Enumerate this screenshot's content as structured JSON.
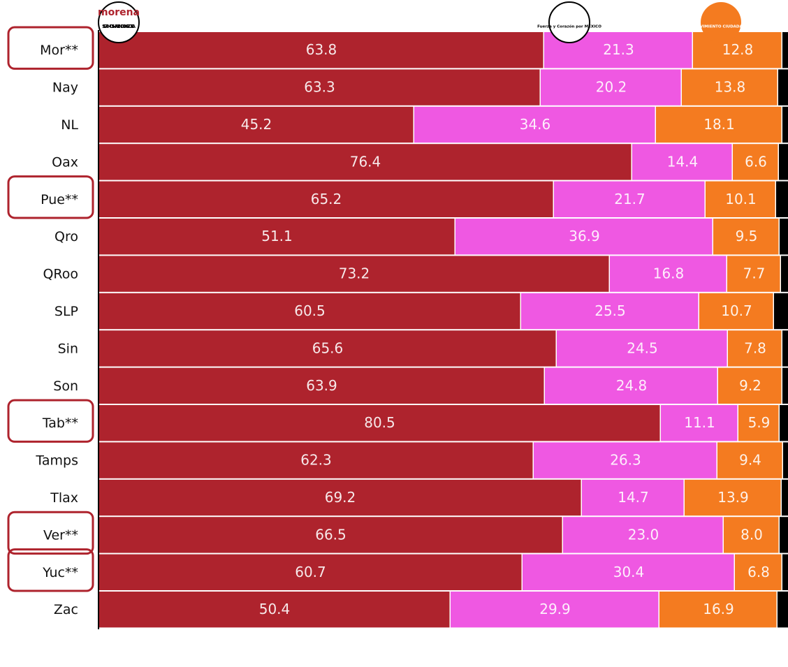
{
  "chart_data": {
    "type": "stacked-bar-horizontal",
    "categories": [
      "Mor**",
      "Nay",
      "NL",
      "Oax",
      "Pue**",
      "Qro",
      "QRoo",
      "SLP",
      "Sin",
      "Son",
      "Tab**",
      "Tamps",
      "Tlax",
      "Ver**",
      "Yuc**",
      "Zac"
    ],
    "xlim": [
      0,
      100
    ],
    "series": [
      {
        "name": "morena",
        "subtitle": "SIGAMOS HACIENDO HISTORIA",
        "color": "#ae232d",
        "values": [
          63.8,
          63.3,
          45.2,
          76.4,
          65.2,
          51.1,
          73.2,
          60.5,
          65.6,
          63.9,
          80.5,
          62.3,
          69.2,
          66.5,
          60.7,
          50.4
        ]
      },
      {
        "name": "Fuerza y Corazón por MÉXICO",
        "color": "#ef58e2",
        "values": [
          21.3,
          20.2,
          34.6,
          14.4,
          21.7,
          36.9,
          16.8,
          25.5,
          24.5,
          24.8,
          11.1,
          26.3,
          14.7,
          23,
          30.4,
          29.9
        ],
        "value_labels": [
          "21.3",
          "20.2",
          "34.6",
          "14.4",
          "21.7",
          "36.9",
          "16.8",
          "25.5",
          "24.5",
          "24.8",
          "11.1",
          "26.3",
          "14.7",
          "23.0",
          "30.4",
          "29.9"
        ]
      },
      {
        "name": "MOVIMIENTO CIUDADANO",
        "color": "#f47b20",
        "values": [
          12.8,
          13.8,
          18.1,
          6.6,
          10.1,
          9.5,
          7.7,
          10.7,
          7.8,
          9.2,
          5.9,
          9.4,
          13.9,
          8.0,
          6.8,
          16.9
        ],
        "value_labels": [
          "12.8",
          "13.8",
          "18.1",
          "6.6",
          "10.1",
          "9.5",
          "7.7",
          "10.7",
          "7.8",
          "9.2",
          "5.9",
          "9.4",
          "13.9",
          "8.0",
          "6.8",
          "16.9"
        ]
      },
      {
        "color": "#000000",
        "values": [
          2.1,
          2.7,
          2.1,
          2.6,
          3.0,
          2.5,
          2.3,
          3.3,
          2.1,
          2.1,
          2.5,
          2.0,
          2.2,
          2.5,
          2.1,
          2.8
        ]
      }
    ]
  }
}
